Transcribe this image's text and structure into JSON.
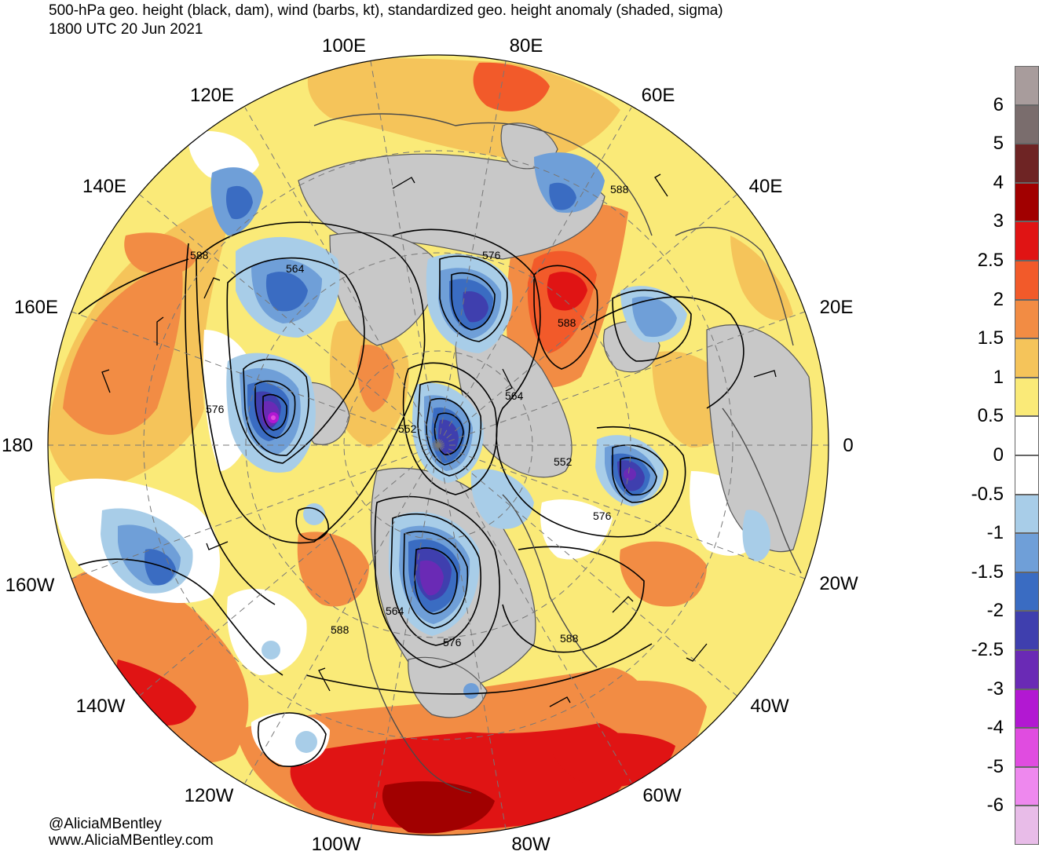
{
  "header": {
    "title": "500-hPa geo. height (black, dam), wind (barbs, kt), standardized geo. height anomaly (shaded, sigma)",
    "valid_time": "1800 UTC 20 Jun 2021"
  },
  "longitude_labels": [
    "100E",
    "80E",
    "120E",
    "60E",
    "140E",
    "40E",
    "160E",
    "20E",
    "180",
    "0",
    "160W",
    "20W",
    "140W",
    "40W",
    "120W",
    "60W",
    "100W",
    "80W"
  ],
  "contour_labels": [
    "588",
    "564",
    "576",
    "588",
    "588",
    "576",
    "564",
    "552",
    "552",
    "576",
    "564",
    "576",
    "588",
    "588"
  ],
  "colorbar": {
    "labels": [
      "6",
      "5",
      "4",
      "3",
      "2.5",
      "2",
      "1.5",
      "1",
      "0.5",
      "0",
      "-0.5",
      "-1",
      "-1.5",
      "-2",
      "-2.5",
      "-3",
      "-4",
      "-5",
      "-6"
    ],
    "colors": [
      "#a89c9c",
      "#7a6d6d",
      "#6e2424",
      "#a10000",
      "#e01414",
      "#f25a2a",
      "#f28c44",
      "#f5c45a",
      "#faea78",
      "#ffffff",
      "#ffffff",
      "#a8cde8",
      "#6f9fd8",
      "#3a6cc2",
      "#3f3fae",
      "#6a2ab5",
      "#b218d2",
      "#e04ce0",
      "#ee88ee",
      "#e8bce8"
    ]
  },
  "map_colors": {
    "gray_land": "#c8c8c8",
    "anom_pos_light": "#faea78",
    "anom_pos_mid": "#f5c45a",
    "anom_pos_orange": "#f28c44",
    "anom_pos_deep": "#f25a2a",
    "anom_pos_red": "#e01414",
    "anom_pos_dark": "#a10000",
    "anom_neg_light": "#a8cde8",
    "anom_neg_mid": "#6f9fd8",
    "anom_neg_blue": "#3a6cc2",
    "anom_neg_indigo": "#3f3fae",
    "anom_neg_purple": "#6a2ab5"
  },
  "credits": {
    "handle": "@AliciaMBentley",
    "website": "www.AliciaMBentley.com"
  }
}
